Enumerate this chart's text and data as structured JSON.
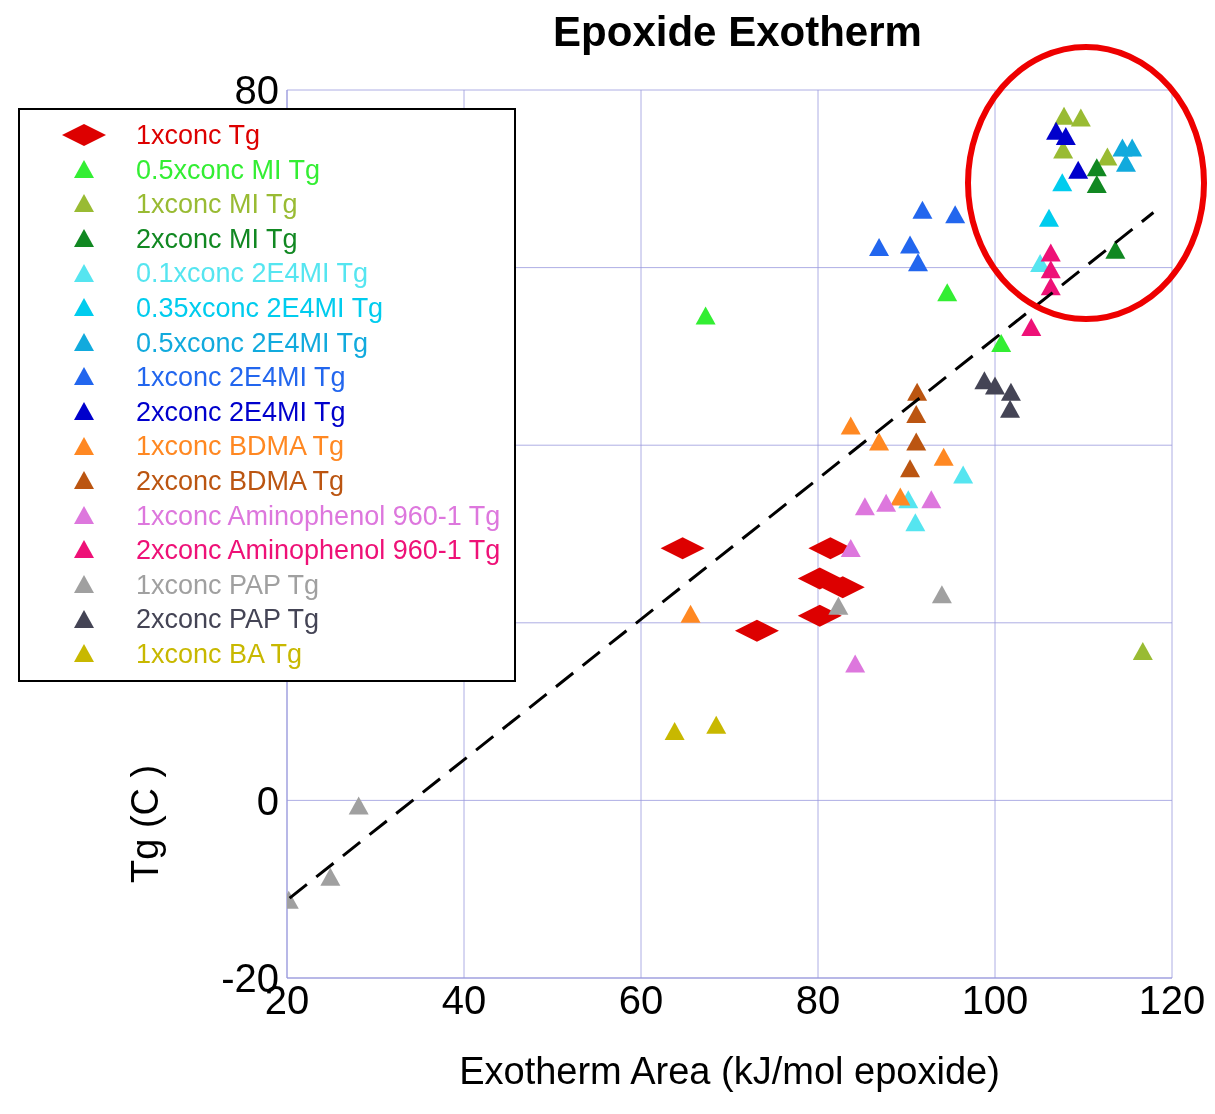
{
  "chart_data": {
    "type": "scatter",
    "title": "Epoxide Exotherm",
    "xlabel": "Exotherm Area (kJ/mol epoxide)",
    "ylabel": "Tg (C )",
    "xlim": [
      20,
      120
    ],
    "xticks": [
      20,
      40,
      60,
      80,
      100,
      120
    ],
    "ylim": [
      -20,
      80
    ],
    "yticks": [
      -20,
      {
        "value": 20,
        "label": null
      },
      {
        "value": 40,
        "label": null
      },
      {
        "value": 60,
        "label": null
      },
      0,
      80
    ],
    "grid": true,
    "legend": "top left",
    "marker": "triangle",
    "series": [
      {
        "name": "1xconc Tg",
        "color": "#dd0000",
        "marker": "diamond",
        "x": [
          64.7,
          81.4,
          80.2,
          82.8,
          80.2,
          73.1
        ],
        "values": [
          28.4,
          28.4,
          25,
          24,
          20.8,
          19.1
        ]
      },
      {
        "name": "0.5xconc MI Tg",
        "color": "#33ee33",
        "x": [
          67.3,
          94.6,
          100.7
        ],
        "values": [
          54.5,
          57.1,
          51.4
        ]
      },
      {
        "name": "1xconc MI Tg",
        "color": "#99bb33",
        "x": [
          107.8,
          109.7,
          107.7,
          112.7,
          116.7
        ],
        "values": [
          77,
          76.8,
          73.2,
          72.4,
          16.7
        ]
      },
      {
        "name": "2xconc MI Tg",
        "color": "#118822",
        "x": [
          111.5,
          111.5,
          113.6
        ],
        "values": [
          71.2,
          69.3,
          61.9
        ]
      },
      {
        "name": "0.1xconc 2E4MI Tg",
        "color": "#55e5f0",
        "x": [
          105.1,
          96.4,
          90.2,
          91
        ],
        "values": [
          60.4,
          36.6,
          33.8,
          31.2
        ]
      },
      {
        "name": "0.35xconc 2E4MI Tg",
        "color": "#00ccee",
        "x": [
          106.1,
          107.6
        ],
        "values": [
          65.5,
          69.5
        ]
      },
      {
        "name": "0.5xconc 2E4MI Tg",
        "color": "#11aadd",
        "x": [
          114.4,
          115.5,
          114.8
        ],
        "values": [
          73.4,
          73.4,
          71.7
        ]
      },
      {
        "name": "1xconc 2E4MI Tg",
        "color": "#2266ee",
        "x": [
          91.8,
          95.5,
          86.9,
          90.4,
          91.3
        ],
        "values": [
          66.4,
          65.9,
          62.2,
          62.5,
          60.5
        ]
      },
      {
        "name": "2xconc 2E4MI Tg",
        "color": "#0000cc",
        "x": [
          106.9,
          108,
          109.4
        ],
        "values": [
          75.3,
          74.7,
          70.9
        ]
      },
      {
        "name": "1xconc BDMA Tg",
        "color": "#ff8822",
        "x": [
          83.7,
          86.9,
          94.2,
          89.3,
          65.6
        ],
        "values": [
          42.1,
          40.3,
          38.6,
          34.1,
          20.9
        ]
      },
      {
        "name": "2xconc BDMA Tg",
        "color": "#bb5511",
        "x": [
          91.2,
          91.1,
          91.1,
          90.4
        ],
        "values": [
          45.9,
          43.4,
          40.3,
          37.3
        ]
      },
      {
        "name": "1xconc Aminophenol 960-1 Tg",
        "color": "#dd77dd",
        "x": [
          85.3,
          87.7,
          92.8,
          83.7,
          84.2
        ],
        "values": [
          33,
          33.4,
          33.8,
          28.3,
          15.3
        ]
      },
      {
        "name": "2xconc Aminophenol 960-1 Tg",
        "color": "#ee1177",
        "x": [
          106.3,
          106.3,
          106.3,
          104.1
        ],
        "values": [
          61.6,
          59.7,
          57.8,
          53.2
        ]
      },
      {
        "name": "1xconc PAP Tg",
        "color": "#a0a0a0",
        "x": [
          28.1,
          24.9,
          20.2,
          82.3,
          94
        ],
        "values": [
          -0.7,
          -8.7,
          -11.3,
          21.8,
          23.1
        ]
      },
      {
        "name": "2xconc PAP Tg",
        "color": "#444455",
        "x": [
          98.8,
          100,
          101.8,
          101.7
        ],
        "values": [
          47.2,
          46.6,
          45.9,
          44
        ]
      },
      {
        "name": "1xconc BA Tg",
        "color": "#c8b800",
        "x": [
          63.8,
          68.5
        ],
        "values": [
          7.7,
          8.4
        ]
      },
      {
        "type": "line",
        "color": "#000000",
        "line_style": "dashed",
        "marker": "none",
        "x": [
          20.3,
          117.9
        ],
        "values": [
          -11,
          66.2
        ]
      }
    ]
  }
}
